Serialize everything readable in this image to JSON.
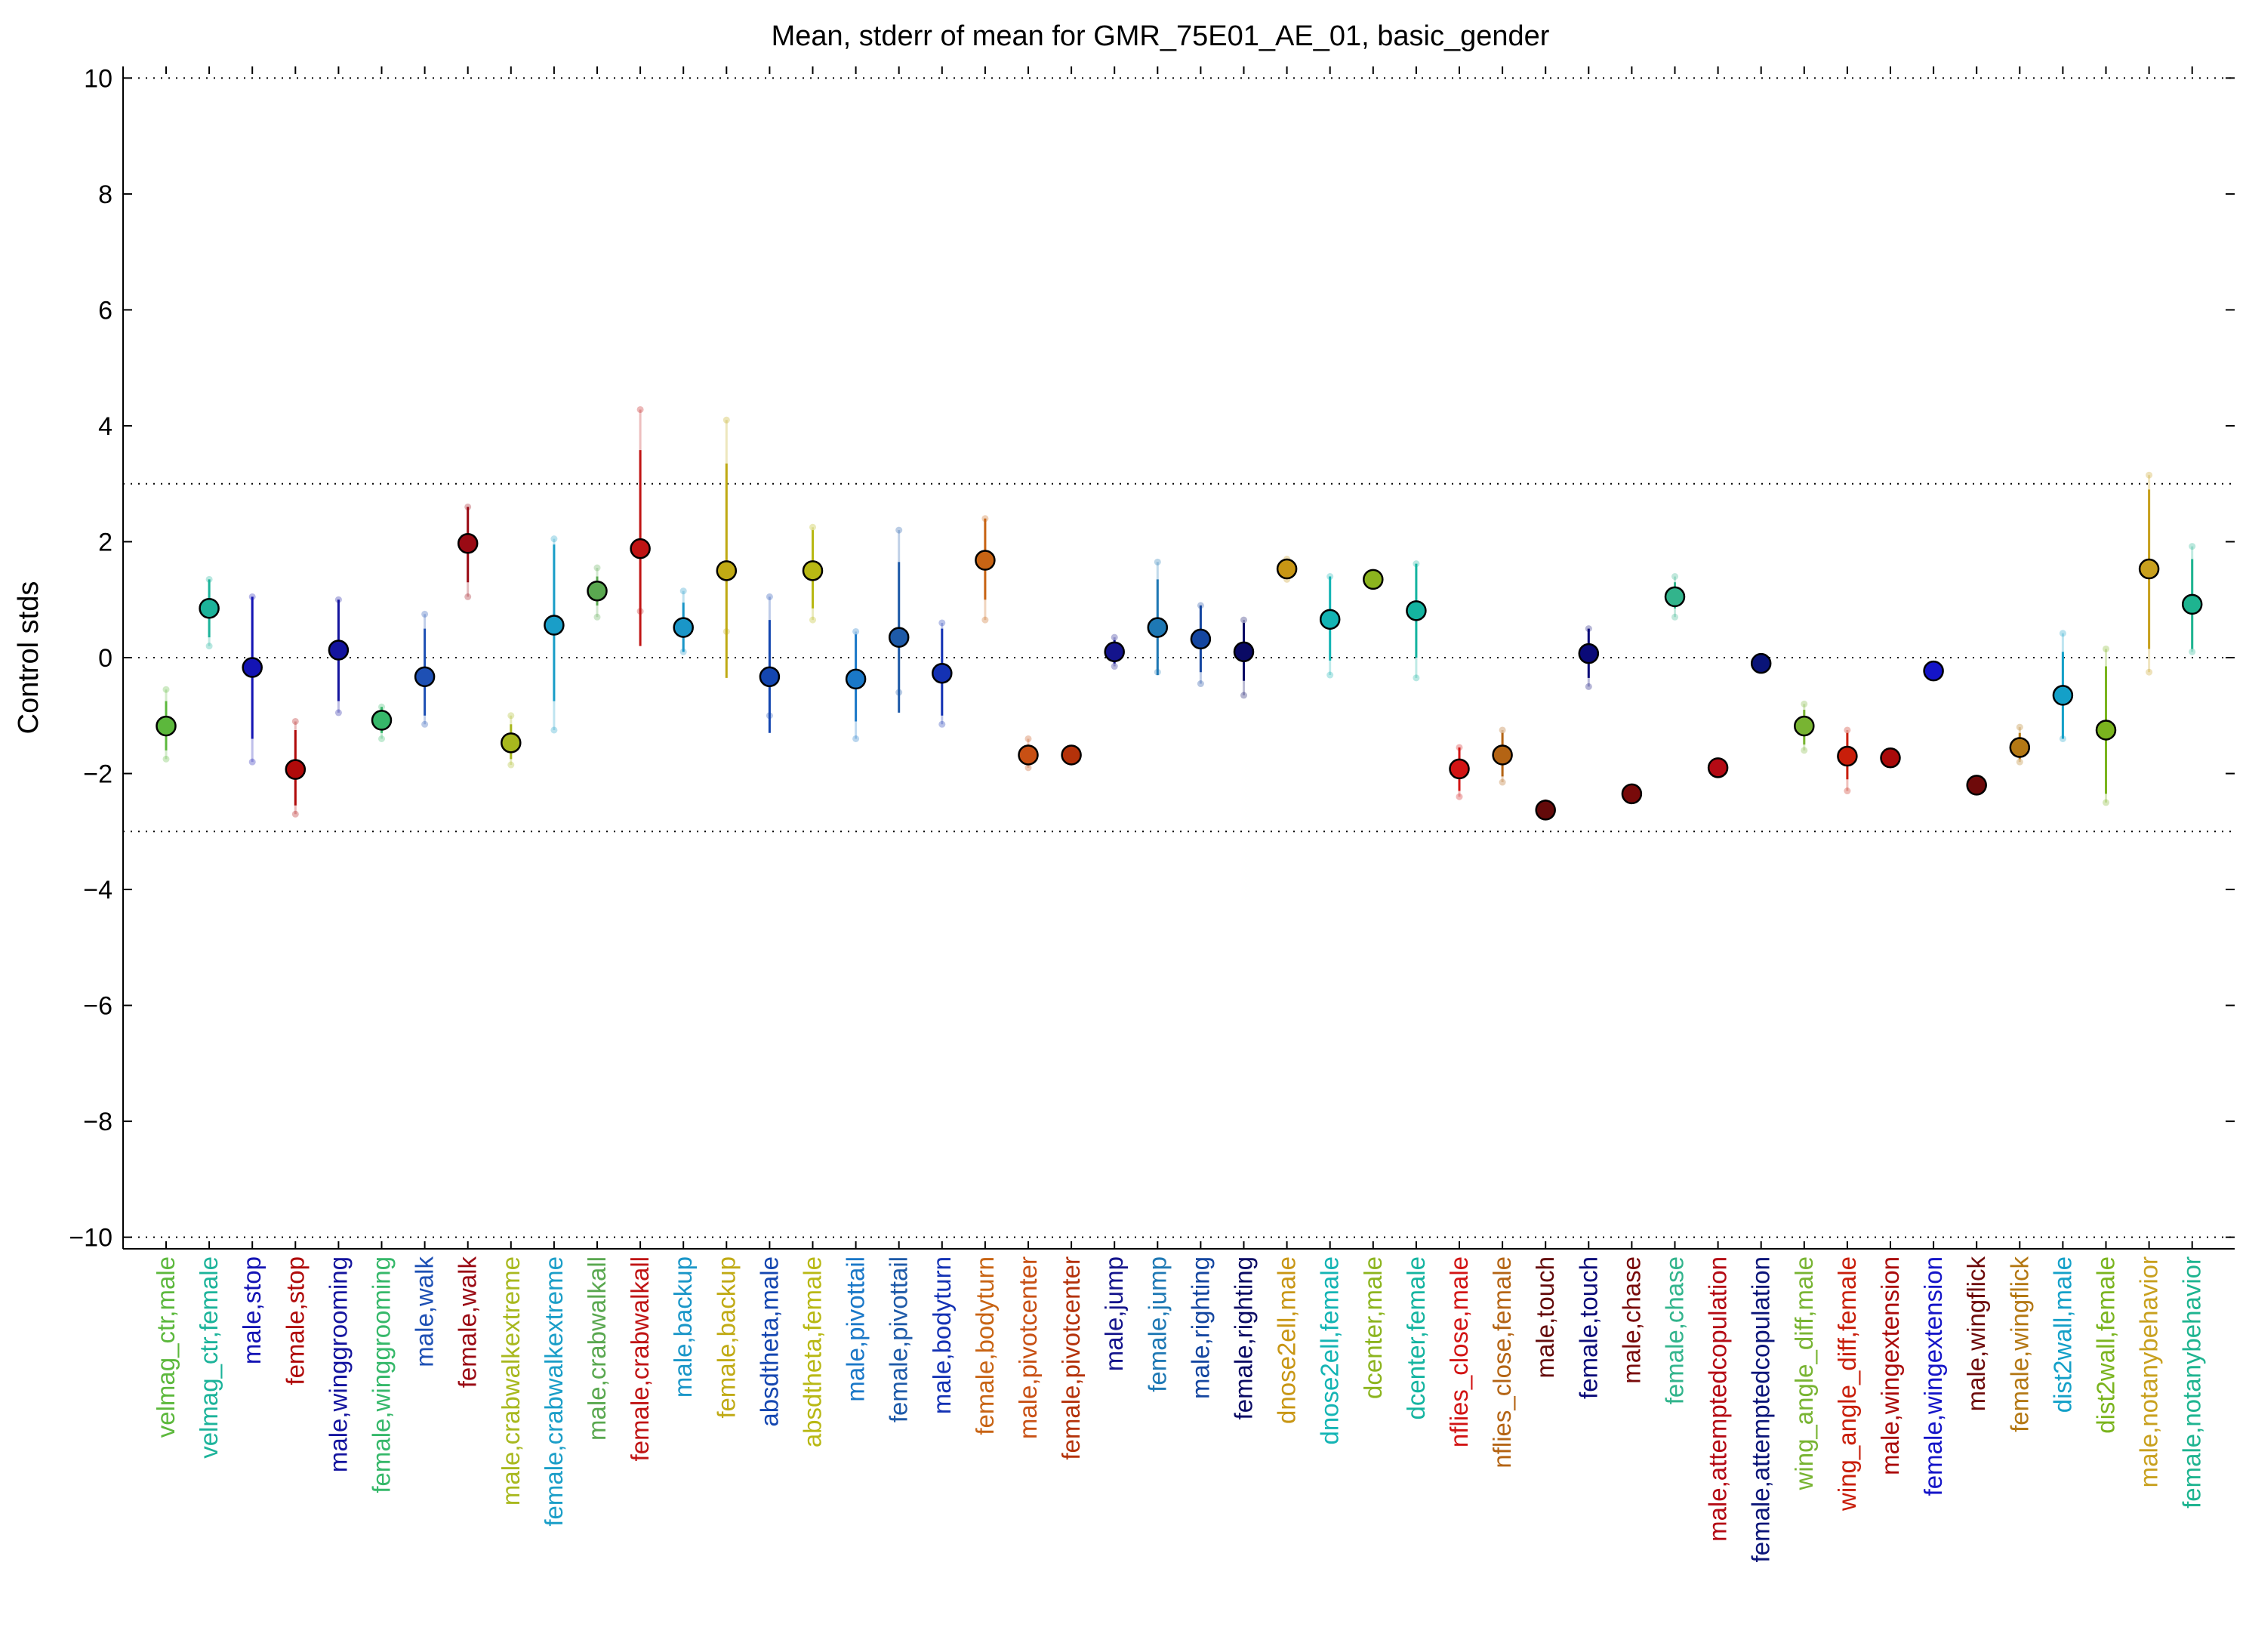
{
  "chart_data": {
    "type": "scatter",
    "title": "Mean, stderr of mean for GMR_75E01_AE_01, basic_gender",
    "xlabel": "",
    "ylabel": "Control stds",
    "ylim": [
      -10.2,
      10.2
    ],
    "yticks": [
      10,
      8,
      6,
      4,
      2,
      0,
      -2,
      -4,
      -6,
      -8,
      -10
    ],
    "ytick_labels": [
      "10",
      "8",
      "6",
      "4",
      "2",
      "0",
      "−2",
      "−4",
      "−6",
      "−8",
      "−10"
    ],
    "reference_lines": [
      10,
      3,
      0,
      -3,
      -10
    ],
    "grid": false,
    "legend": "none",
    "marker_edge_color": "#000000",
    "points": [
      {
        "label": "velmag_ctr,male",
        "color": "#5cb83c",
        "mean": -1.18,
        "err_low": -1.6,
        "err_high": -0.75,
        "ext_low": -1.75,
        "ext_high": -0.55
      },
      {
        "label": "velmag_ctr,female",
        "color": "#1cb39a",
        "mean": 0.85,
        "err_low": 0.35,
        "err_high": 1.35,
        "ext_low": 0.2,
        "ext_high": 1.35
      },
      {
        "label": "male,stop",
        "color": "#1414b4",
        "mean": -0.17,
        "err_low": -1.4,
        "err_high": 1.05,
        "ext_low": -1.8,
        "ext_high": 1.05
      },
      {
        "label": "female,stop",
        "color": "#b00a0a",
        "mean": -1.93,
        "err_low": -2.55,
        "err_high": -1.25,
        "ext_low": -2.7,
        "ext_high": -1.1
      },
      {
        "label": "male,winggrooming",
        "color": "#14149e",
        "mean": 0.13,
        "err_low": -0.75,
        "err_high": 1.0,
        "ext_low": -0.95,
        "ext_high": 1.0
      },
      {
        "label": "female,winggrooming",
        "color": "#36b86a",
        "mean": -1.08,
        "err_low": -1.3,
        "err_high": -0.85,
        "ext_low": -1.4,
        "ext_high": -0.85
      },
      {
        "label": "male,walk",
        "color": "#1e50b4",
        "mean": -0.33,
        "err_low": -1.0,
        "err_high": 0.5,
        "ext_low": -1.15,
        "ext_high": 0.75
      },
      {
        "label": "female,walk",
        "color": "#9a0a14",
        "mean": 1.97,
        "err_low": 1.3,
        "err_high": 2.6,
        "ext_low": 1.05,
        "ext_high": 2.6
      },
      {
        "label": "male,crabwalkextreme",
        "color": "#a8b81e",
        "mean": -1.47,
        "err_low": -1.75,
        "err_high": -1.15,
        "ext_low": -1.85,
        "ext_high": -1.0
      },
      {
        "label": "female,crabwalkextreme",
        "color": "#1a9ec8",
        "mean": 0.56,
        "err_low": -0.75,
        "err_high": 1.95,
        "ext_low": -1.25,
        "ext_high": 2.05
      },
      {
        "label": "male,crabwalkall",
        "color": "#5aa850",
        "mean": 1.15,
        "err_low": 0.9,
        "err_high": 1.4,
        "ext_low": 0.7,
        "ext_high": 1.55
      },
      {
        "label": "female,crabwalkall",
        "color": "#c01414",
        "mean": 1.88,
        "err_low": 0.2,
        "err_high": 3.58,
        "ext_low": 0.8,
        "ext_high": 4.28
      },
      {
        "label": "male,backup",
        "color": "#1a96c8",
        "mean": 0.52,
        "err_low": 0.1,
        "err_high": 0.95,
        "ext_low": 0.1,
        "ext_high": 1.15
      },
      {
        "label": "female,backup",
        "color": "#c0aa14",
        "mean": 1.5,
        "err_low": -0.35,
        "err_high": 3.35,
        "ext_low": 0.45,
        "ext_high": 4.1
      },
      {
        "label": "absdtheta,male",
        "color": "#1446b0",
        "mean": -0.33,
        "err_low": -1.3,
        "err_high": 0.65,
        "ext_low": -1.0,
        "ext_high": 1.05
      },
      {
        "label": "absdtheta,female",
        "color": "#b8b814",
        "mean": 1.5,
        "err_low": 0.85,
        "err_high": 2.2,
        "ext_low": 0.65,
        "ext_high": 2.25
      },
      {
        "label": "male,pivottail",
        "color": "#1a78c8",
        "mean": -0.37,
        "err_low": -1.1,
        "err_high": 0.4,
        "ext_low": -1.4,
        "ext_high": 0.45
      },
      {
        "label": "female,pivottail",
        "color": "#1e5aa8",
        "mean": 0.35,
        "err_low": -0.95,
        "err_high": 1.65,
        "ext_low": -0.6,
        "ext_high": 2.2
      },
      {
        "label": "male,bodyturn",
        "color": "#1432b4",
        "mean": -0.27,
        "err_low": -1.0,
        "err_high": 0.5,
        "ext_low": -1.15,
        "ext_high": 0.6
      },
      {
        "label": "female,bodyturn",
        "color": "#c86414",
        "mean": 1.68,
        "err_low": 1.0,
        "err_high": 2.4,
        "ext_low": 0.65,
        "ext_high": 2.4
      },
      {
        "label": "male,pivotcenter",
        "color": "#c85014",
        "mean": -1.68,
        "err_low": -1.85,
        "err_high": -1.5,
        "ext_low": -1.9,
        "ext_high": -1.4
      },
      {
        "label": "female,pivotcenter",
        "color": "#b4320a",
        "mean": -1.68,
        "err_low": -1.75,
        "err_high": -1.6,
        "ext_low": -1.75,
        "ext_high": -1.6
      },
      {
        "label": "male,jump",
        "color": "#14148c",
        "mean": 0.1,
        "err_low": -0.1,
        "err_high": 0.3,
        "ext_low": -0.15,
        "ext_high": 0.35
      },
      {
        "label": "female,jump",
        "color": "#1e78b4",
        "mean": 0.52,
        "err_low": -0.3,
        "err_high": 1.35,
        "ext_low": -0.25,
        "ext_high": 1.65
      },
      {
        "label": "male,righting",
        "color": "#1446a0",
        "mean": 0.32,
        "err_low": -0.25,
        "err_high": 0.9,
        "ext_low": -0.45,
        "ext_high": 0.9
      },
      {
        "label": "female,righting",
        "color": "#0a0a64",
        "mean": 0.1,
        "err_low": -0.4,
        "err_high": 0.6,
        "ext_low": -0.65,
        "ext_high": 0.65
      },
      {
        "label": "dnose2ell,male",
        "color": "#c89614",
        "mean": 1.53,
        "err_low": 1.4,
        "err_high": 1.7,
        "ext_low": 1.35,
        "ext_high": 1.7
      },
      {
        "label": "dnose2ell,female",
        "color": "#14b4b4",
        "mean": 0.66,
        "err_low": -0.05,
        "err_high": 1.4,
        "ext_low": -0.3,
        "ext_high": 1.4
      },
      {
        "label": "dcenter,male",
        "color": "#8cb41e",
        "mean": 1.35,
        "err_low": 1.3,
        "err_high": 1.4,
        "ext_low": 1.3,
        "ext_high": 1.4
      },
      {
        "label": "dcenter,female",
        "color": "#14b4a0",
        "mean": 0.81,
        "err_low": 0.0,
        "err_high": 1.62,
        "ext_low": -0.35,
        "ext_high": 1.62
      },
      {
        "label": "nflies_close,male",
        "color": "#d21414",
        "mean": -1.92,
        "err_low": -2.3,
        "err_high": -1.55,
        "ext_low": -2.4,
        "ext_high": -1.55
      },
      {
        "label": "nflies_close,female",
        "color": "#b46414",
        "mean": -1.68,
        "err_low": -2.05,
        "err_high": -1.3,
        "ext_low": -2.15,
        "ext_high": -1.25
      },
      {
        "label": "male,touch",
        "color": "#640a0a",
        "mean": -2.63,
        "err_low": -2.75,
        "err_high": -2.5,
        "ext_low": -2.75,
        "ext_high": -2.5
      },
      {
        "label": "female,touch",
        "color": "#0a0a78",
        "mean": 0.07,
        "err_low": -0.35,
        "err_high": 0.5,
        "ext_low": -0.5,
        "ext_high": 0.5
      },
      {
        "label": "male,chase",
        "color": "#780a0a",
        "mean": -2.35,
        "err_low": -2.45,
        "err_high": -2.25,
        "ext_low": -2.45,
        "ext_high": -2.25
      },
      {
        "label": "female,chase",
        "color": "#32b48c",
        "mean": 1.05,
        "err_low": 0.85,
        "err_high": 1.3,
        "ext_low": 0.7,
        "ext_high": 1.4
      },
      {
        "label": "male,attemptedcopulation",
        "color": "#b40a14",
        "mean": -1.9,
        "err_low": -1.95,
        "err_high": -1.85,
        "ext_low": -1.95,
        "ext_high": -1.85
      },
      {
        "label": "female,attemptedcopulation",
        "color": "#0a1478",
        "mean": -0.1,
        "err_low": -0.15,
        "err_high": -0.05,
        "ext_low": -0.15,
        "ext_high": -0.05
      },
      {
        "label": "wing_angle_diff,male",
        "color": "#78b432",
        "mean": -1.18,
        "err_low": -1.5,
        "err_high": -0.9,
        "ext_low": -1.6,
        "ext_high": -0.8
      },
      {
        "label": "wing_angle_diff,female",
        "color": "#c81e0a",
        "mean": -1.7,
        "err_low": -2.1,
        "err_high": -1.3,
        "ext_low": -2.3,
        "ext_high": -1.25
      },
      {
        "label": "male,wingextension",
        "color": "#aa0a0a",
        "mean": -1.73,
        "err_low": -1.8,
        "err_high": -1.65,
        "ext_low": -1.8,
        "ext_high": -1.65
      },
      {
        "label": "female,wingextension",
        "color": "#1414c8",
        "mean": -0.23,
        "err_low": -0.3,
        "err_high": -0.15,
        "ext_low": -0.3,
        "ext_high": -0.15
      },
      {
        "label": "male,wingflick",
        "color": "#6e0a0a",
        "mean": -2.2,
        "err_low": -2.25,
        "err_high": -2.15,
        "ext_low": -2.25,
        "ext_high": -2.15
      },
      {
        "label": "female,wingflick",
        "color": "#b47814",
        "mean": -1.55,
        "err_low": -1.75,
        "err_high": -1.3,
        "ext_low": -1.8,
        "ext_high": -1.2
      },
      {
        "label": "dist2wall,male",
        "color": "#14a0c8",
        "mean": -0.65,
        "err_low": -1.4,
        "err_high": 0.1,
        "ext_low": -1.4,
        "ext_high": 0.42
      },
      {
        "label": "dist2wall,female",
        "color": "#7ab41e",
        "mean": -1.25,
        "err_low": -2.35,
        "err_high": -0.15,
        "ext_low": -2.5,
        "ext_high": 0.15
      },
      {
        "label": "male,notanybehavior",
        "color": "#c8a01e",
        "mean": 1.53,
        "err_low": 0.15,
        "err_high": 2.9,
        "ext_low": -0.25,
        "ext_high": 3.15
      },
      {
        "label": "female,notanybehavior",
        "color": "#1eb490",
        "mean": 0.92,
        "err_low": 0.15,
        "err_high": 1.7,
        "ext_low": 0.1,
        "ext_high": 1.92
      }
    ]
  }
}
